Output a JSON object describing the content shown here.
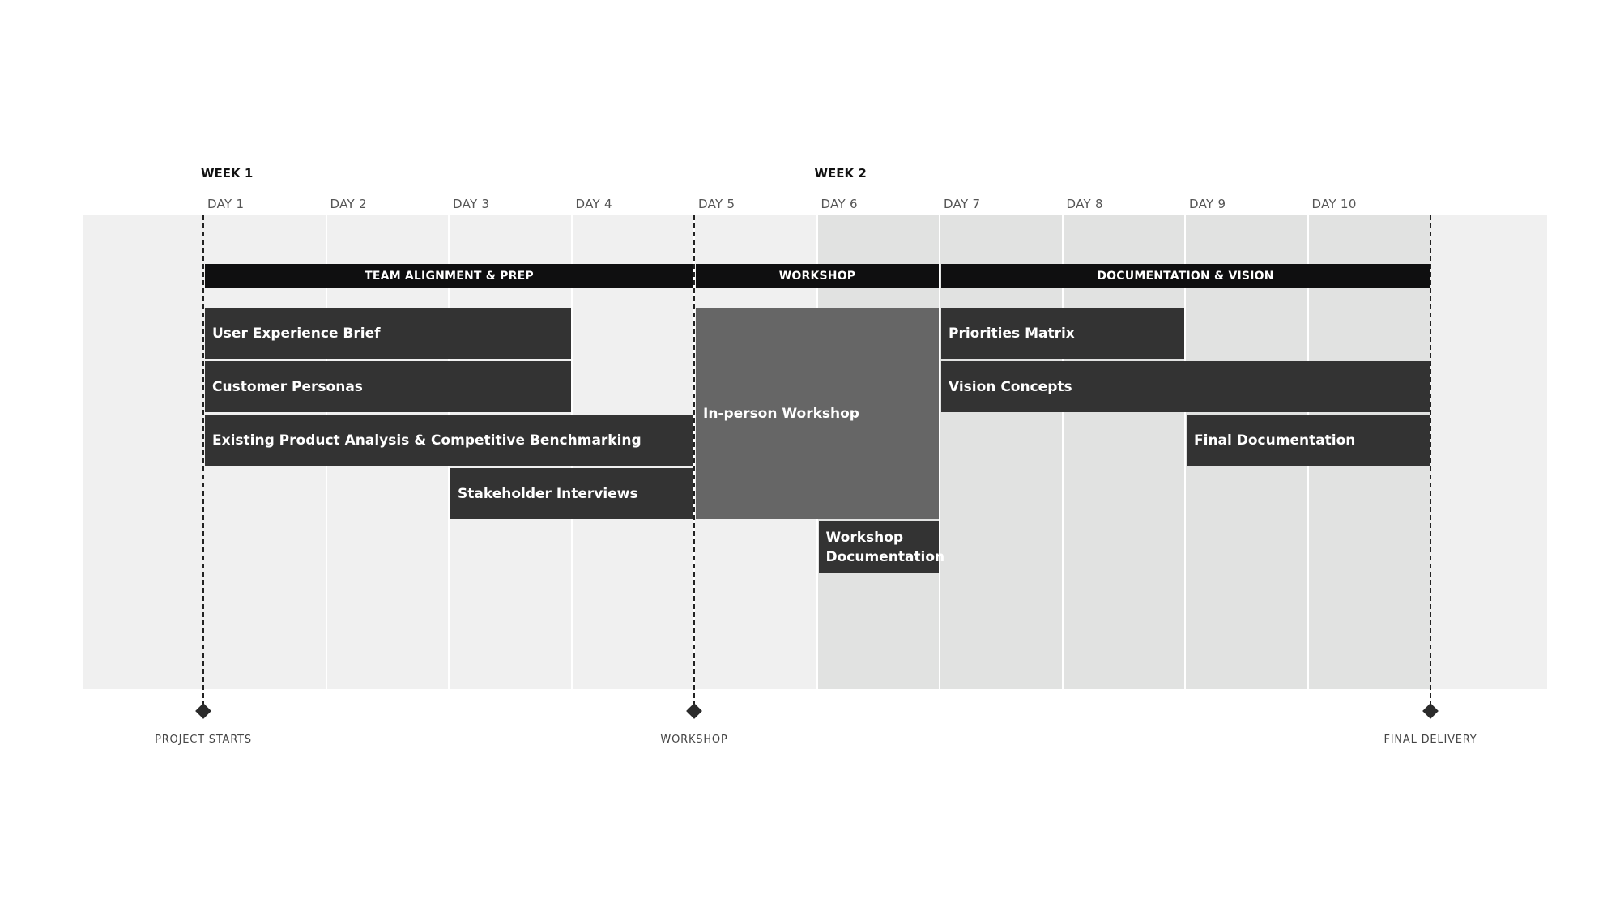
{
  "weeks": [
    {
      "label": "WEEK 1",
      "start_day": 1
    },
    {
      "label": "WEEK 2",
      "start_day": 6
    }
  ],
  "days": [
    "DAY 1",
    "DAY 2",
    "DAY 3",
    "DAY 4",
    "DAY 5",
    "DAY 6",
    "DAY 7",
    "DAY 8",
    "DAY 9",
    "DAY 10"
  ],
  "phases": [
    {
      "label": "TEAM ALIGNMENT & PREP",
      "start_day": 1,
      "end_day": 4
    },
    {
      "label": "WORKSHOP",
      "start_day": 5,
      "end_day": 6
    },
    {
      "label": "DOCUMENTATION & VISION",
      "start_day": 7,
      "end_day": 10
    }
  ],
  "tasks": [
    {
      "label": "User Experience Brief",
      "start_day": 1,
      "end_day": 3,
      "row": 1,
      "rows": 1,
      "style": "dark"
    },
    {
      "label": "Customer Personas",
      "start_day": 1,
      "end_day": 3,
      "row": 2,
      "rows": 1,
      "style": "dark"
    },
    {
      "label": "Existing Product Analysis & Competitive Benchmarking",
      "start_day": 1,
      "end_day": 4,
      "row": 3,
      "rows": 1,
      "style": "dark"
    },
    {
      "label": "Stakeholder Interviews",
      "start_day": 3,
      "end_day": 4,
      "row": 4,
      "rows": 1,
      "style": "dark"
    },
    {
      "label": "In-person Workshop",
      "start_day": 5,
      "end_day": 6,
      "row": 1,
      "rows": 4,
      "style": "light"
    },
    {
      "label": "Workshop Documentation",
      "start_day": 6,
      "end_day": 6,
      "row": 5,
      "rows": 1,
      "style": "dark"
    },
    {
      "label": "Priorities Matrix",
      "start_day": 7,
      "end_day": 8,
      "row": 1,
      "rows": 1,
      "style": "dark"
    },
    {
      "label": "Vision Concepts",
      "start_day": 7,
      "end_day": 10,
      "row": 2,
      "rows": 1,
      "style": "dark"
    },
    {
      "label": "Final Documentation",
      "start_day": 9,
      "end_day": 10,
      "row": 3,
      "rows": 1,
      "style": "dark"
    }
  ],
  "milestones": [
    {
      "label": "PROJECT STARTS",
      "at_day_start": 1
    },
    {
      "label": "WORKSHOP",
      "at_day_start": 5
    },
    {
      "label": "FINAL DELIVERY",
      "at_day_start": 11
    }
  ],
  "highlighted_days": [
    6,
    7,
    8,
    9,
    10
  ],
  "colors": {
    "panel": "#f0f0f0",
    "highlight": "#e1e2e1",
    "phase_bar": "#0f0f10",
    "task_dark": "#333333",
    "task_light": "#666666"
  }
}
